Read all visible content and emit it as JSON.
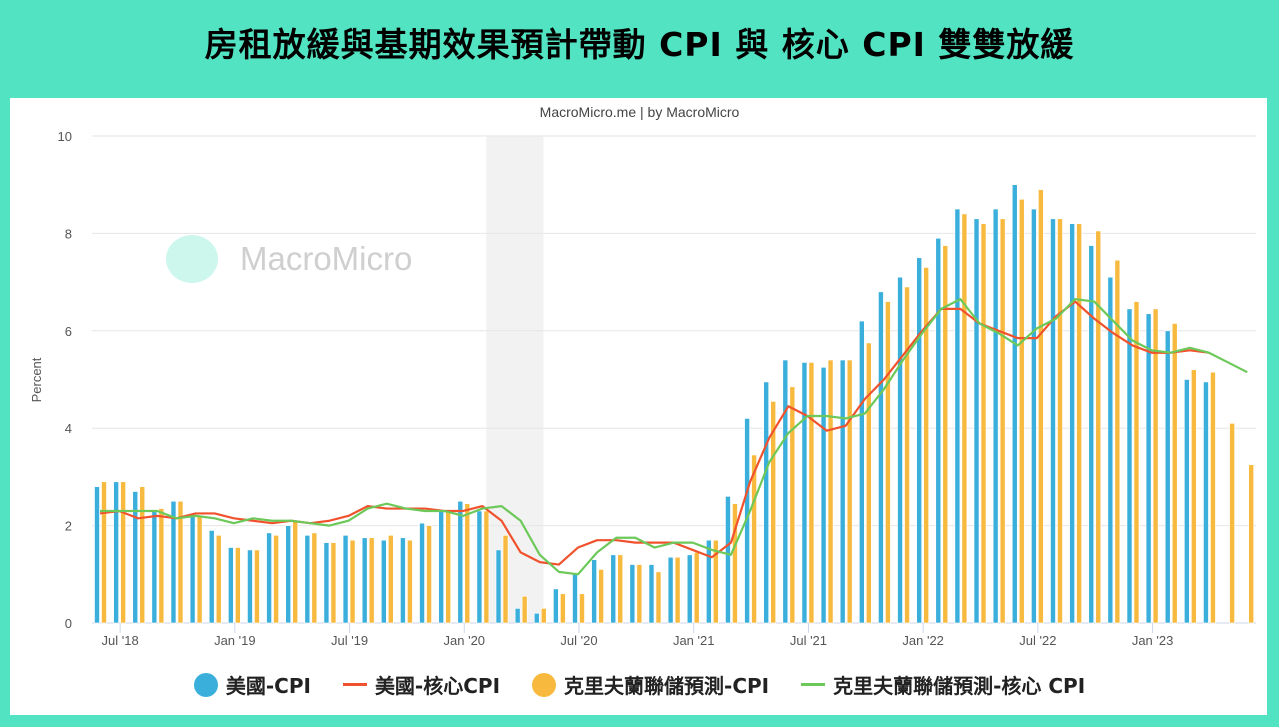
{
  "title": "房租放緩與基期效果預計帶動 CPI 與 核心 CPI 雙雙放緩",
  "credit": "MacroMicro.me | by MacroMicro",
  "watermark": "MacroMicro",
  "colors": {
    "frame": "#52e3c2",
    "cpi": "#3aafdc",
    "core": "#f0522e",
    "cleveland_cpi": "#f7ba3e",
    "cleveland_core": "#6cc959",
    "recession": "#f2f2f2"
  },
  "chart_data": {
    "type": "bar+line",
    "ylabel": "Percent",
    "ylim": [
      0,
      10
    ],
    "yticks": [
      0,
      2,
      4,
      6,
      8,
      10
    ],
    "grid": true,
    "legend_position": "bottom",
    "x_start": "2018-06",
    "x_end": "2023-06",
    "xticks": [
      {
        "label": "Jul '18",
        "index": 1
      },
      {
        "label": "Jan '19",
        "index": 7
      },
      {
        "label": "Jul '19",
        "index": 13
      },
      {
        "label": "Jan '20",
        "index": 19
      },
      {
        "label": "Jul '20",
        "index": 25
      },
      {
        "label": "Jan '21",
        "index": 31
      },
      {
        "label": "Jul '21",
        "index": 37
      },
      {
        "label": "Jan '22",
        "index": 43
      },
      {
        "label": "Jul '22",
        "index": 49
      },
      {
        "label": "Jan '23",
        "index": 55
      }
    ],
    "recession_shading": {
      "from_index": 20.2,
      "to_index": 23.2
    },
    "series": [
      {
        "name": "美國-CPI",
        "type": "bar",
        "values": [
          2.8,
          2.9,
          2.7,
          2.3,
          2.5,
          2.2,
          1.9,
          1.55,
          1.5,
          1.85,
          2.0,
          1.8,
          1.65,
          1.8,
          1.75,
          1.7,
          1.75,
          2.05,
          2.3,
          2.5,
          2.3,
          1.5,
          0.3,
          0.2,
          0.7,
          1.0,
          1.3,
          1.4,
          1.2,
          1.2,
          1.35,
          1.4,
          1.7,
          2.6,
          4.2,
          4.95,
          5.4,
          5.35,
          5.25,
          5.4,
          6.2,
          6.8,
          7.1,
          7.5,
          7.9,
          8.5,
          8.3,
          8.5,
          9.0,
          8.5,
          8.3,
          8.2,
          7.75,
          7.1,
          6.45,
          6.35,
          6.0,
          5.0,
          4.95,
          null,
          null
        ]
      },
      {
        "name": "美國-核心CPI",
        "type": "line",
        "values": [
          2.25,
          2.3,
          2.15,
          2.2,
          2.15,
          2.25,
          2.25,
          2.15,
          2.1,
          2.05,
          2.1,
          2.05,
          2.1,
          2.2,
          2.4,
          2.35,
          2.35,
          2.35,
          2.3,
          2.3,
          2.4,
          2.1,
          1.45,
          1.25,
          1.2,
          1.55,
          1.7,
          1.7,
          1.65,
          1.65,
          1.65,
          1.5,
          1.35,
          1.65,
          2.9,
          3.8,
          4.45,
          4.25,
          3.95,
          4.05,
          4.6,
          5.0,
          5.5,
          6.0,
          6.45,
          6.45,
          6.15,
          6.0,
          5.85,
          5.85,
          6.3,
          6.6,
          6.25,
          5.95,
          5.7,
          5.55,
          5.55,
          5.6,
          5.55,
          null,
          null
        ]
      },
      {
        "name": "克里夫蘭聯儲預測-CPI",
        "type": "bar",
        "values": [
          2.9,
          2.9,
          2.8,
          2.35,
          2.5,
          2.2,
          1.8,
          1.55,
          1.5,
          1.8,
          2.1,
          1.85,
          1.65,
          1.7,
          1.75,
          1.8,
          1.7,
          2.0,
          2.3,
          2.45,
          2.3,
          1.8,
          0.55,
          0.3,
          0.6,
          0.6,
          1.1,
          1.4,
          1.2,
          1.05,
          1.35,
          1.45,
          1.7,
          2.45,
          3.45,
          4.55,
          4.85,
          5.35,
          5.4,
          5.4,
          5.75,
          6.6,
          6.9,
          7.3,
          7.75,
          8.4,
          8.2,
          8.3,
          8.7,
          8.9,
          8.3,
          8.2,
          8.05,
          7.45,
          6.6,
          6.45,
          6.15,
          5.2,
          5.15,
          4.1,
          3.25
        ]
      },
      {
        "name": "克里夫蘭聯儲預測-核心 CPI",
        "type": "line",
        "values": [
          2.3,
          2.3,
          2.3,
          2.3,
          2.15,
          2.2,
          2.15,
          2.05,
          2.15,
          2.1,
          2.1,
          2.05,
          2.0,
          2.1,
          2.35,
          2.45,
          2.35,
          2.3,
          2.3,
          2.2,
          2.35,
          2.4,
          2.1,
          1.4,
          1.05,
          1.0,
          1.45,
          1.75,
          1.75,
          1.55,
          1.65,
          1.65,
          1.5,
          1.4,
          2.3,
          3.3,
          3.9,
          4.25,
          4.25,
          4.2,
          4.3,
          4.8,
          5.4,
          5.95,
          6.45,
          6.65,
          6.15,
          5.95,
          5.7,
          6.05,
          6.25,
          6.65,
          6.6,
          6.2,
          5.8,
          5.6,
          5.55,
          5.65,
          5.55,
          5.35,
          5.15
        ]
      }
    ]
  }
}
